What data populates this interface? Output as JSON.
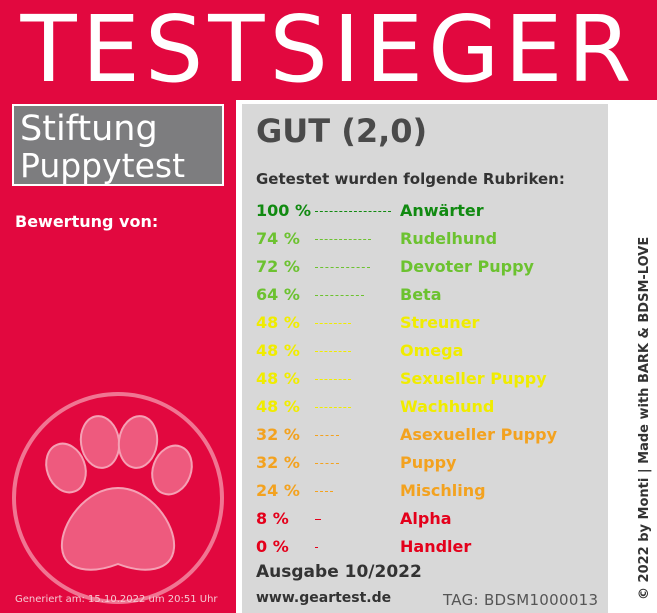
{
  "header": {
    "title": "TESTSIEGER"
  },
  "brand": {
    "line1": "Stiftung",
    "line2": "Puppytest"
  },
  "rating": {
    "label": "Bewertung von:"
  },
  "footer_left": {
    "generated": "Generiert am: 15.10.2022 um 20:51 Uhr"
  },
  "card": {
    "grade": "GUT (2,0)",
    "subtitle": "Getestet wurden folgende Rubriken:",
    "results": [
      {
        "percent": "100 %",
        "value": 100,
        "category": "Anwärter",
        "color": "#118a11"
      },
      {
        "percent": "74 %",
        "value": 74,
        "category": "Rudelhund",
        "color": "#6cc230"
      },
      {
        "percent": "72 %",
        "value": 72,
        "category": "Devoter Puppy",
        "color": "#6cc230"
      },
      {
        "percent": "64 %",
        "value": 64,
        "category": "Beta",
        "color": "#6cc230"
      },
      {
        "percent": "48 %",
        "value": 48,
        "category": "Streuner",
        "color": "#f0ec00"
      },
      {
        "percent": "48 %",
        "value": 48,
        "category": "Omega",
        "color": "#f0ec00"
      },
      {
        "percent": "48 %",
        "value": 48,
        "category": "Sexueller Puppy",
        "color": "#f0ec00"
      },
      {
        "percent": "48 %",
        "value": 48,
        "category": "Wachhund",
        "color": "#f0ec00"
      },
      {
        "percent": "32 %",
        "value": 32,
        "category": "Asexueller Puppy",
        "color": "#f3a21f"
      },
      {
        "percent": "32 %",
        "value": 32,
        "category": "Puppy",
        "color": "#f3a21f"
      },
      {
        "percent": "24 %",
        "value": 24,
        "category": "Mischling",
        "color": "#f3a21f"
      },
      {
        "percent": "8 %",
        "value": 8,
        "category": "Alpha",
        "color": "#e4001b"
      },
      {
        "percent": "0 %",
        "value": 0,
        "category": "Handler",
        "color": "#e4001b"
      }
    ],
    "issue": "Ausgabe 10/2022",
    "website": "www.geartest.de",
    "tag": "TAG: BDSM1000013"
  },
  "side": {
    "copyright": "© 2022 by Monti | Made with BARK & BDSM-LOVE"
  },
  "colors": {
    "accent": "#e2083f",
    "card_bg": "#d8d8d8",
    "brand_box": "#7d7d7f"
  },
  "icons": {
    "paw": "paw-print-icon"
  }
}
